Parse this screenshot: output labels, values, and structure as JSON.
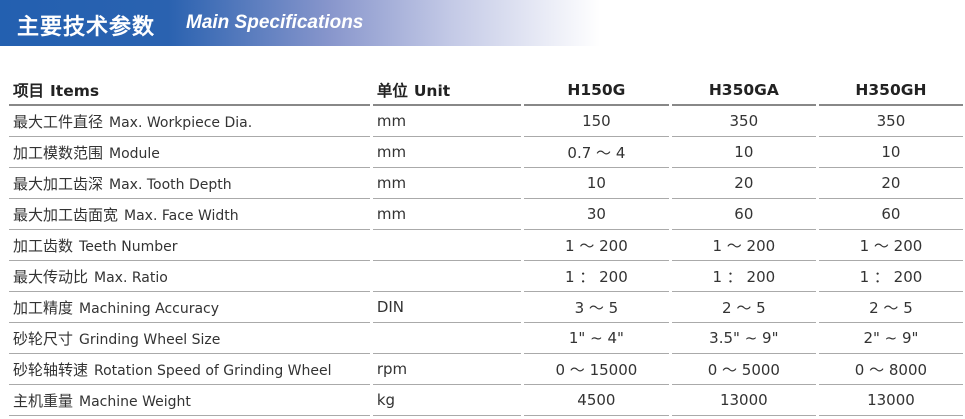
{
  "banner": {
    "title_cn": "主要技术参数",
    "title_en": "Main Specifications",
    "gradient_start": "#2360b0"
  },
  "header": {
    "item_cn": "项目",
    "item_en": "Items",
    "unit_cn": "单位",
    "unit_en": "Unit",
    "models": [
      "H150G",
      "H350GA",
      "H350GH"
    ]
  },
  "rows": [
    {
      "cn": "最大工件直径",
      "en": "Max. Workpiece Dia.",
      "unit": "mm",
      "values": [
        "150",
        "350",
        "350"
      ]
    },
    {
      "cn": "加工模数范围",
      "en": "Module",
      "unit": "mm",
      "values": [
        "0.7 ～ 4",
        "10",
        "10"
      ]
    },
    {
      "cn": "最大加工齿深",
      "en": "Max. Tooth Depth",
      "unit": "mm",
      "values": [
        "10",
        "20",
        "20"
      ]
    },
    {
      "cn": "最大加工齿面宽",
      "en": "Max. Face Width",
      "unit": "mm",
      "values": [
        "30",
        "60",
        "60"
      ]
    },
    {
      "cn": "加工齿数",
      "en": "Teeth Number",
      "unit": "",
      "values": [
        "1 ～ 200",
        "1 ～ 200",
        "1 ～ 200"
      ]
    },
    {
      "cn": "最大传动比",
      "en": "Max. Ratio",
      "unit": "",
      "values": [
        "1 ： 200",
        "1 ： 200",
        "1 ： 200"
      ]
    },
    {
      "cn": "加工精度",
      "en": "Machining Accuracy",
      "unit": "DIN",
      "values": [
        "3 ～ 5",
        "2 ～ 5",
        "2 ～ 5"
      ]
    },
    {
      "cn": "砂轮尺寸",
      "en": "Grinding Wheel Size",
      "unit": "",
      "values": [
        "1\" ~ 4\"",
        "3.5\" ~ 9\"",
        "2\" ~ 9\""
      ]
    },
    {
      "cn": "砂轮轴转速",
      "en": "Rotation Speed of Grinding Wheel",
      "unit": "rpm",
      "values": [
        "0 ～ 15000",
        "0 ～ 5000",
        "0 ～ 8000"
      ]
    },
    {
      "cn": "主机重量",
      "en": "Machine Weight",
      "unit": "kg",
      "values": [
        "4500",
        "13000",
        "13000"
      ]
    }
  ]
}
